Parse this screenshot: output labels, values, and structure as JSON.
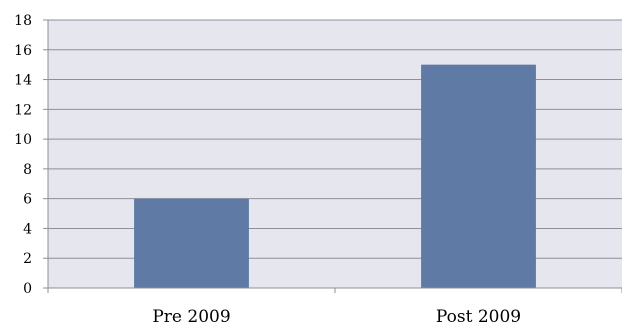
{
  "chart_data": {
    "type": "bar",
    "title": "",
    "xlabel": "",
    "ylabel": "",
    "categories": [
      "Pre 2009",
      "Post 2009"
    ],
    "values": [
      6,
      15
    ],
    "ylim": [
      0,
      18
    ],
    "yticks": [
      0,
      2,
      4,
      6,
      8,
      10,
      12,
      14,
      16,
      18
    ],
    "grid": true,
    "legend": "none",
    "colors": {
      "bar": "#5f7aa5",
      "plot_background": "#e6e6ef",
      "gridline": "#8f8f9a",
      "axis": "#8f8f9a"
    }
  }
}
